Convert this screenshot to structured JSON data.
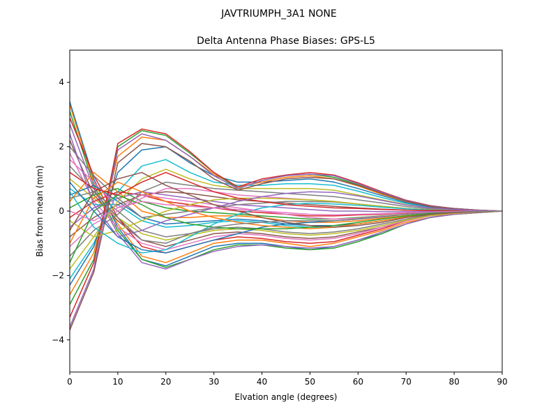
{
  "chart_data": {
    "type": "line",
    "suptitle": "JAVTRIUMPH_3A1  NONE",
    "title": "Delta Antenna Phase Biases: GPS-L5",
    "xlabel": "Elvation angle (degrees)",
    "ylabel": "Bias from mean (mm)",
    "xlim": [
      0,
      90
    ],
    "ylim": [
      -5,
      5
    ],
    "xticks": [
      0,
      10,
      20,
      30,
      40,
      50,
      60,
      70,
      80,
      90
    ],
    "xtick_labels": [
      "0",
      "10",
      "20",
      "30",
      "40",
      "50",
      "60",
      "70",
      "80",
      "90"
    ],
    "yticks": [
      -4,
      -2,
      0,
      2,
      4
    ],
    "ytick_labels": [
      "−4",
      "−2",
      "0",
      "2",
      "4"
    ],
    "grid": false,
    "x": [
      0,
      5,
      10,
      15,
      20,
      25,
      30,
      35,
      40,
      45,
      50,
      55,
      60,
      65,
      70,
      75,
      80,
      85,
      90
    ],
    "colors": [
      "#1f77b4",
      "#ff7f0e",
      "#2ca02c",
      "#d62728",
      "#9467bd",
      "#8c564b",
      "#e377c2",
      "#7f7f7f",
      "#bcbd22",
      "#17becf"
    ],
    "series": [
      {
        "values": [
          3.4,
          1.0,
          -0.5,
          -1.5,
          -1.7,
          -1.4,
          -1.1,
          -1.0,
          -1.0,
          -1.1,
          -1.2,
          -1.1,
          -0.9,
          -0.7,
          -0.4,
          -0.2,
          -0.1,
          -0.05,
          0
        ]
      },
      {
        "values": [
          3.3,
          0.9,
          -0.4,
          -1.4,
          -1.6,
          -1.3,
          -1.0,
          -0.9,
          -0.9,
          -1.0,
          -1.1,
          -1.0,
          -0.8,
          -0.6,
          -0.35,
          -0.2,
          -0.1,
          -0.05,
          0
        ]
      },
      {
        "values": [
          3.1,
          0.8,
          -0.6,
          -1.5,
          -1.75,
          -1.5,
          -1.2,
          -1.05,
          -1.05,
          -1.15,
          -1.2,
          -1.15,
          -0.95,
          -0.7,
          -0.4,
          -0.2,
          -0.1,
          -0.05,
          0
        ]
      },
      {
        "values": [
          2.9,
          1.1,
          -0.2,
          -1.1,
          -1.3,
          -1.1,
          -0.9,
          -0.8,
          -0.85,
          -0.95,
          -1.0,
          -0.95,
          -0.75,
          -0.55,
          -0.3,
          -0.15,
          -0.08,
          -0.03,
          0
        ]
      },
      {
        "values": [
          2.7,
          0.7,
          -0.7,
          -1.6,
          -1.8,
          -1.5,
          -1.25,
          -1.1,
          -1.05,
          -1.1,
          -1.15,
          -1.1,
          -0.9,
          -0.65,
          -0.4,
          -0.2,
          -0.1,
          -0.05,
          0
        ]
      },
      {
        "values": [
          2.2,
          0.5,
          -0.3,
          -0.9,
          -1.1,
          -0.9,
          -0.7,
          -0.65,
          -0.7,
          -0.8,
          -0.85,
          -0.8,
          -0.65,
          -0.5,
          -0.3,
          -0.15,
          -0.08,
          -0.03,
          0
        ]
      },
      {
        "values": [
          1.8,
          0.3,
          -0.5,
          -1.0,
          -1.2,
          -1.0,
          -0.8,
          -0.7,
          -0.75,
          -0.85,
          -0.9,
          -0.85,
          -0.7,
          -0.5,
          -0.3,
          -0.15,
          -0.08,
          -0.03,
          0
        ]
      },
      {
        "values": [
          1.4,
          0.6,
          0.0,
          -0.6,
          -0.8,
          -0.7,
          -0.55,
          -0.5,
          -0.55,
          -0.65,
          -0.7,
          -0.65,
          -0.55,
          -0.4,
          -0.25,
          -0.12,
          -0.06,
          -0.02,
          0
        ]
      },
      {
        "values": [
          1.0,
          0.4,
          -0.2,
          -0.7,
          -0.9,
          -0.75,
          -0.6,
          -0.55,
          -0.6,
          -0.7,
          -0.75,
          -0.7,
          -0.6,
          -0.45,
          -0.28,
          -0.14,
          -0.07,
          -0.03,
          0
        ]
      },
      {
        "values": [
          0.7,
          0.2,
          0.2,
          -0.3,
          -0.5,
          -0.45,
          -0.35,
          -0.3,
          -0.35,
          -0.45,
          -0.5,
          -0.5,
          -0.4,
          -0.3,
          -0.18,
          -0.1,
          -0.05,
          -0.02,
          0
        ]
      },
      {
        "values": [
          0.5,
          0.8,
          0.3,
          -0.2,
          -0.4,
          -0.35,
          -0.3,
          -0.25,
          -0.3,
          -0.4,
          -0.45,
          -0.45,
          -0.4,
          -0.3,
          -0.18,
          -0.1,
          -0.05,
          -0.02,
          0
        ]
      },
      {
        "values": [
          0.3,
          1.2,
          0.6,
          0.0,
          -0.2,
          -0.2,
          -0.15,
          -0.15,
          -0.2,
          -0.3,
          -0.35,
          -0.35,
          -0.3,
          -0.22,
          -0.14,
          -0.08,
          -0.04,
          -0.02,
          0
        ]
      },
      {
        "values": [
          0.1,
          0.5,
          0.7,
          0.3,
          0.1,
          0.0,
          -0.05,
          -0.1,
          -0.15,
          -0.2,
          -0.25,
          -0.25,
          -0.2,
          -0.15,
          -0.1,
          -0.05,
          -0.03,
          -0.01,
          0
        ]
      },
      {
        "values": [
          -0.2,
          0.3,
          0.6,
          0.5,
          0.3,
          0.2,
          0.1,
          0.0,
          -0.05,
          -0.1,
          -0.15,
          -0.15,
          -0.12,
          -0.1,
          -0.06,
          -0.03,
          -0.02,
          -0.01,
          0
        ]
      },
      {
        "values": [
          -0.5,
          0.1,
          0.4,
          0.6,
          0.5,
          0.4,
          0.3,
          0.2,
          0.15,
          0.1,
          0.05,
          0.0,
          0.0,
          -0.02,
          -0.02,
          -0.01,
          0.0,
          0.0,
          0
        ]
      },
      {
        "values": [
          -0.8,
          -0.2,
          0.2,
          0.5,
          0.6,
          0.55,
          0.45,
          0.35,
          0.3,
          0.25,
          0.2,
          0.15,
          0.1,
          0.06,
          0.03,
          0.02,
          0.01,
          0.0,
          0
        ]
      },
      {
        "values": [
          -1.1,
          -0.4,
          0.0,
          0.4,
          0.7,
          0.7,
          0.6,
          0.5,
          0.45,
          0.4,
          0.35,
          0.3,
          0.22,
          0.15,
          0.08,
          0.04,
          0.02,
          0.01,
          0
        ]
      },
      {
        "values": [
          -1.4,
          -0.6,
          -0.1,
          0.6,
          0.9,
          0.8,
          0.7,
          0.65,
          0.6,
          0.55,
          0.5,
          0.45,
          0.35,
          0.25,
          0.14,
          0.07,
          0.03,
          0.01,
          0
        ]
      },
      {
        "values": [
          -1.8,
          -0.8,
          0.3,
          1.0,
          1.3,
          1.0,
          0.8,
          0.7,
          0.7,
          0.7,
          0.7,
          0.65,
          0.5,
          0.35,
          0.2,
          0.1,
          0.05,
          0.02,
          0
        ]
      },
      {
        "values": [
          -2.1,
          -1.0,
          0.6,
          1.4,
          1.6,
          1.2,
          0.9,
          0.8,
          0.8,
          0.85,
          0.85,
          0.8,
          0.62,
          0.42,
          0.24,
          0.12,
          0.06,
          0.02,
          0
        ]
      },
      {
        "values": [
          -2.3,
          -1.1,
          1.2,
          1.9,
          2.0,
          1.5,
          1.1,
          0.9,
          0.9,
          0.95,
          1.0,
          0.9,
          0.7,
          0.48,
          0.27,
          0.13,
          0.06,
          0.02,
          0
        ]
      },
      {
        "values": [
          -2.6,
          -1.3,
          1.7,
          2.3,
          2.2,
          1.7,
          1.15,
          0.75,
          0.9,
          1.05,
          1.1,
          1.0,
          0.78,
          0.52,
          0.3,
          0.15,
          0.07,
          0.03,
          0
        ]
      },
      {
        "values": [
          -2.9,
          -1.5,
          2.0,
          2.5,
          2.35,
          1.8,
          1.2,
          0.7,
          0.95,
          1.1,
          1.15,
          1.05,
          0.82,
          0.55,
          0.32,
          0.16,
          0.08,
          0.03,
          0
        ]
      },
      {
        "values": [
          -3.3,
          -1.6,
          2.1,
          2.55,
          2.4,
          1.85,
          1.2,
          0.75,
          1.0,
          1.12,
          1.2,
          1.12,
          0.88,
          0.6,
          0.34,
          0.17,
          0.08,
          0.03,
          0
        ]
      },
      {
        "values": [
          -3.6,
          -1.8,
          1.9,
          2.4,
          2.2,
          1.7,
          1.1,
          0.7,
          0.95,
          1.1,
          1.15,
          1.1,
          0.85,
          0.58,
          0.33,
          0.16,
          0.08,
          0.03,
          0
        ]
      },
      {
        "values": [
          -3.7,
          -1.9,
          1.5,
          2.1,
          2.0,
          1.55,
          1.0,
          0.65,
          0.85,
          1.0,
          1.05,
          1.0,
          0.8,
          0.55,
          0.31,
          0.15,
          0.07,
          0.03,
          0
        ]
      },
      {
        "values": [
          1.6,
          0.9,
          0.1,
          0.5,
          0.4,
          0.3,
          0.2,
          0.1,
          0.0,
          -0.1,
          -0.2,
          -0.25,
          -0.22,
          -0.16,
          -0.1,
          -0.05,
          -0.03,
          -0.01,
          0
        ]
      },
      {
        "values": [
          2.0,
          1.1,
          0.4,
          -0.2,
          -0.1,
          0.0,
          0.1,
          0.2,
          0.25,
          0.3,
          0.3,
          0.28,
          0.22,
          0.15,
          0.08,
          0.04,
          0.02,
          0.01,
          0
        ]
      },
      {
        "values": [
          -0.3,
          -0.8,
          -0.6,
          -0.3,
          0.0,
          0.2,
          0.35,
          0.4,
          0.4,
          0.38,
          0.35,
          0.3,
          0.22,
          0.15,
          0.08,
          0.04,
          0.02,
          0.01,
          0
        ]
      },
      {
        "values": [
          0.6,
          -0.5,
          -1.0,
          -1.3,
          -1.2,
          -0.8,
          -0.4,
          -0.1,
          0.1,
          0.2,
          0.25,
          0.22,
          0.18,
          0.12,
          0.07,
          0.03,
          0.02,
          0.01,
          0
        ]
      },
      {
        "values": [
          0.9,
          0.0,
          -0.8,
          -1.2,
          -1.3,
          -1.1,
          -0.9,
          -0.7,
          -0.5,
          -0.4,
          -0.35,
          -0.3,
          -0.25,
          -0.18,
          -0.1,
          -0.05,
          -0.03,
          -0.01,
          0
        ]
      },
      {
        "values": [
          -1.0,
          0.4,
          0.9,
          0.6,
          0.3,
          0.0,
          -0.2,
          -0.35,
          -0.45,
          -0.5,
          -0.55,
          -0.5,
          -0.4,
          -0.3,
          -0.18,
          -0.1,
          -0.05,
          -0.02,
          0
        ]
      },
      {
        "values": [
          -1.6,
          0.0,
          0.5,
          0.2,
          -0.2,
          -0.4,
          -0.5,
          -0.55,
          -0.55,
          -0.55,
          -0.5,
          -0.45,
          -0.35,
          -0.25,
          -0.15,
          -0.08,
          -0.04,
          -0.02,
          0
        ]
      },
      {
        "values": [
          1.2,
          0.7,
          0.5,
          0.9,
          1.2,
          0.9,
          0.6,
          0.4,
          0.3,
          0.2,
          0.15,
          0.1,
          0.08,
          0.05,
          0.03,
          0.02,
          0.01,
          0.0,
          0
        ]
      },
      {
        "values": [
          2.4,
          0.2,
          -0.8,
          -0.6,
          -0.3,
          -0.1,
          0.1,
          0.3,
          0.45,
          0.55,
          0.6,
          0.58,
          0.47,
          0.33,
          0.19,
          0.1,
          0.05,
          0.02,
          0
        ]
      },
      {
        "values": [
          -0.6,
          0.6,
          1.0,
          1.2,
          0.8,
          0.5,
          0.2,
          0.0,
          -0.2,
          -0.35,
          -0.45,
          -0.5,
          -0.45,
          -0.35,
          -0.2,
          -0.1,
          -0.05,
          -0.02,
          0
        ]
      },
      {
        "values": [
          0.0,
          -0.3,
          0.1,
          0.3,
          0.2,
          0.15,
          0.1,
          0.05,
          0.0,
          -0.05,
          -0.1,
          -0.12,
          -0.1,
          -0.08,
          -0.05,
          -0.03,
          -0.01,
          0.0,
          0
        ]
      },
      {
        "values": [
          0.4,
          0.6,
          -0.2,
          -0.9,
          -1.0,
          -0.7,
          -0.5,
          -0.4,
          -0.35,
          -0.3,
          -0.3,
          -0.3,
          -0.25,
          -0.18,
          -0.1,
          -0.05,
          -0.03,
          -0.01,
          0
        ]
      }
    ]
  }
}
